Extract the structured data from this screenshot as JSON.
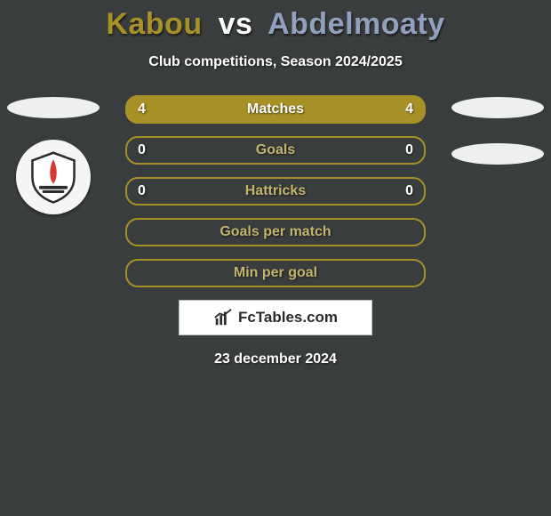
{
  "title": {
    "left": "Kabou",
    "vs": "vs",
    "right": "Abdelmoaty",
    "left_color": "#a79127",
    "vs_color": "#ffffff",
    "right_color": "#91a1bd"
  },
  "subtitle": "Club competitions, Season 2024/2025",
  "accent_left": "#a79127",
  "accent_right": "#91a1bd",
  "label_color": "#c3b46c",
  "background": "#3a3d3e",
  "rows": [
    {
      "label": "Matches",
      "left": "4",
      "right": "4",
      "fill": "full"
    },
    {
      "label": "Goals",
      "left": "0",
      "right": "0",
      "fill": "none"
    },
    {
      "label": "Hattricks",
      "left": "0",
      "right": "0",
      "fill": "none"
    },
    {
      "label": "Goals per match",
      "left": "",
      "right": "",
      "fill": "none"
    },
    {
      "label": "Min per goal",
      "left": "",
      "right": "",
      "fill": "none"
    }
  ],
  "footer_brand": "FcTables.com",
  "date": "23 december 2024"
}
